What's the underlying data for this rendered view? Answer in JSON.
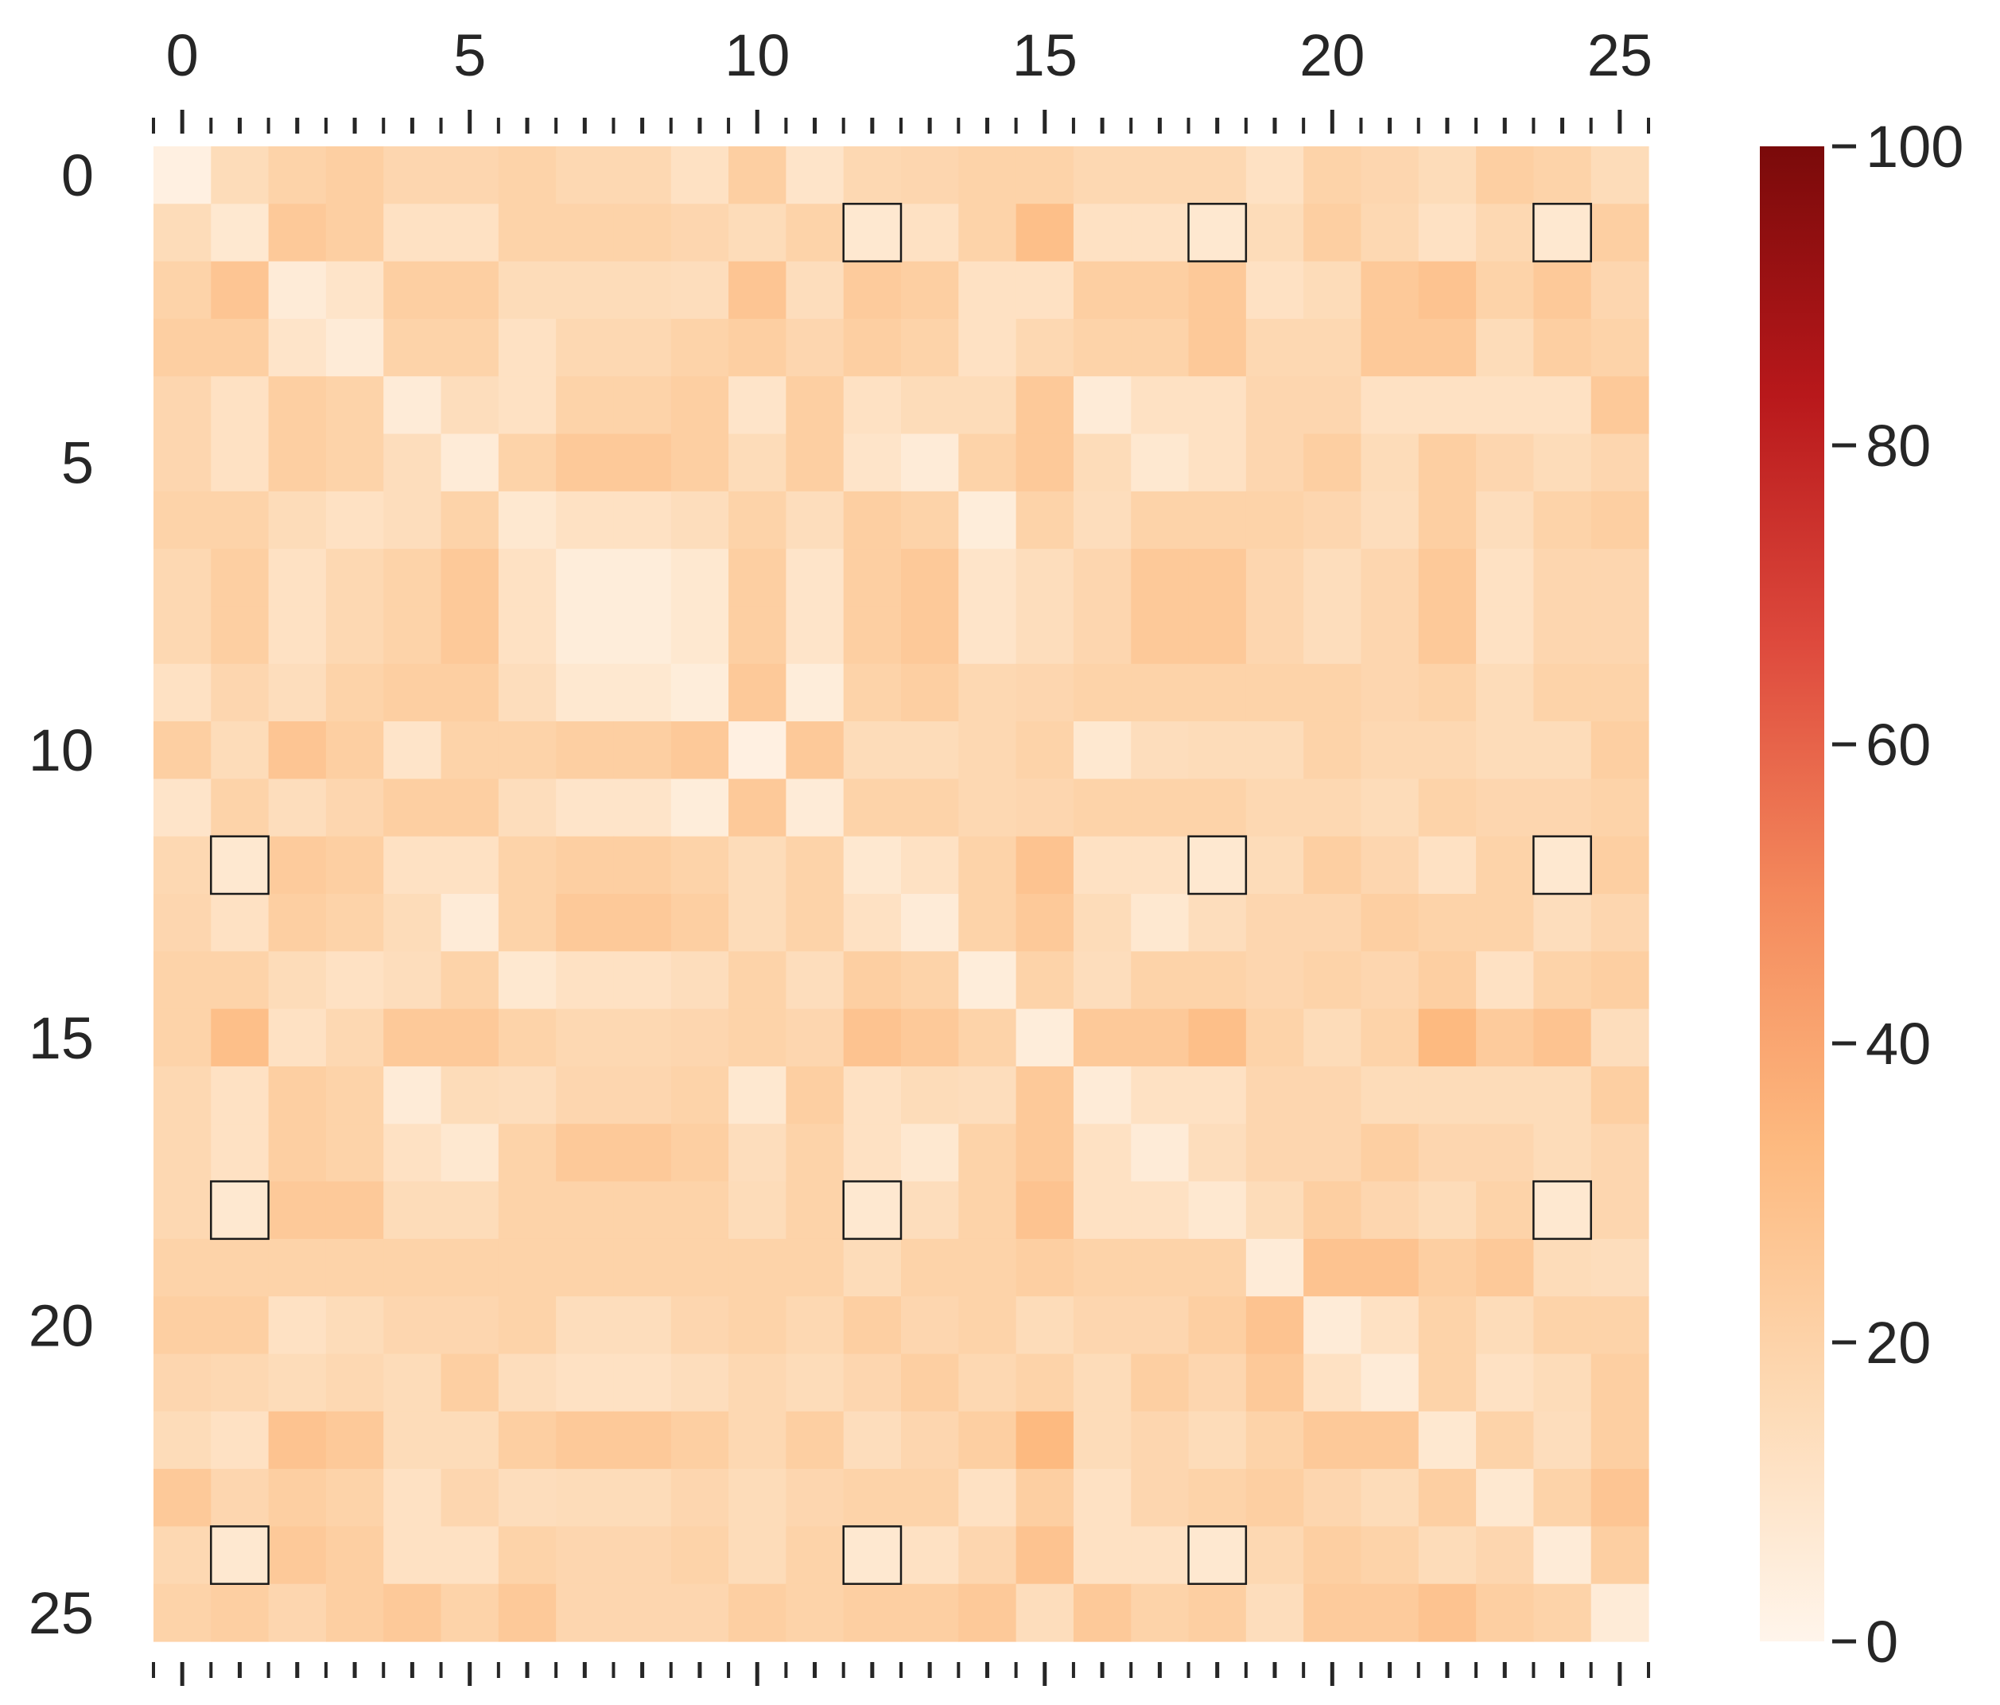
{
  "chart_data": {
    "type": "heatmap",
    "title": "",
    "xlabel": "",
    "ylabel": "",
    "n_rows": 26,
    "n_cols": 26,
    "x_ticks": [
      0,
      5,
      10,
      15,
      20,
      25
    ],
    "y_ticks": [
      0,
      5,
      10,
      15,
      20,
      25
    ],
    "x_tick_labels": [
      "0",
      "5",
      "10",
      "15",
      "20",
      "25"
    ],
    "y_tick_labels": [
      "0",
      "5",
      "10",
      "15",
      "20",
      "25"
    ],
    "colorbar": {
      "range": [
        0,
        100
      ],
      "ticks": [
        0,
        20,
        40,
        60,
        80,
        100
      ],
      "tick_labels": [
        "0",
        "20",
        "40",
        "60",
        "80",
        "100"
      ],
      "colormap": "Oranges",
      "colors": [
        "#fff5eb",
        "#fdd9b3",
        "#fdb97f",
        "#f4895c",
        "#de4a3d",
        "#b8181b",
        "#7a0a0a"
      ]
    },
    "highlighted_cells": [
      [
        1,
        12
      ],
      [
        1,
        18
      ],
      [
        1,
        24
      ],
      [
        12,
        1
      ],
      [
        12,
        18
      ],
      [
        12,
        24
      ],
      [
        18,
        1
      ],
      [
        18,
        12
      ],
      [
        18,
        24
      ],
      [
        24,
        1
      ],
      [
        24,
        12
      ],
      [
        24,
        18
      ]
    ],
    "values": [
      [
        3,
        15,
        20,
        22,
        18,
        18,
        20,
        17,
        17,
        12,
        22,
        10,
        17,
        18,
        20,
        20,
        17,
        17,
        17,
        12,
        20,
        18,
        15,
        22,
        20,
        15
      ],
      [
        15,
        8,
        25,
        22,
        12,
        12,
        20,
        20,
        20,
        18,
        15,
        20,
        8,
        12,
        20,
        30,
        12,
        12,
        8,
        15,
        22,
        17,
        12,
        17,
        8,
        22
      ],
      [
        20,
        27,
        6,
        10,
        22,
        22,
        15,
        15,
        15,
        14,
        27,
        14,
        24,
        22,
        12,
        12,
        22,
        22,
        25,
        12,
        15,
        25,
        28,
        20,
        25,
        18
      ],
      [
        22,
        22,
        10,
        6,
        20,
        20,
        12,
        17,
        17,
        20,
        22,
        18,
        22,
        20,
        12,
        17,
        20,
        20,
        25,
        17,
        17,
        25,
        25,
        15,
        22,
        20
      ],
      [
        18,
        12,
        22,
        20,
        6,
        14,
        12,
        20,
        20,
        22,
        10,
        22,
        12,
        15,
        15,
        25,
        6,
        12,
        12,
        18,
        18,
        12,
        12,
        12,
        12,
        25
      ],
      [
        18,
        12,
        22,
        20,
        14,
        6,
        20,
        25,
        25,
        22,
        15,
        22,
        10,
        6,
        20,
        25,
        15,
        8,
        12,
        18,
        22,
        15,
        22,
        18,
        15,
        18
      ],
      [
        20,
        20,
        15,
        12,
        14,
        20,
        8,
        12,
        12,
        14,
        20,
        14,
        22,
        20,
        5,
        20,
        14,
        20,
        20,
        20,
        18,
        14,
        22,
        14,
        20,
        22
      ],
      [
        17,
        22,
        12,
        17,
        20,
        25,
        12,
        5,
        5,
        8,
        22,
        10,
        22,
        25,
        10,
        14,
        18,
        25,
        25,
        18,
        14,
        18,
        25,
        12,
        18,
        18
      ],
      [
        17,
        22,
        12,
        17,
        20,
        25,
        12,
        5,
        5,
        8,
        22,
        10,
        22,
        25,
        10,
        14,
        18,
        25,
        25,
        18,
        14,
        18,
        25,
        12,
        18,
        18
      ],
      [
        12,
        18,
        14,
        20,
        22,
        22,
        14,
        8,
        8,
        5,
        25,
        5,
        20,
        22,
        17,
        18,
        20,
        20,
        20,
        20,
        20,
        18,
        20,
        15,
        20,
        20
      ],
      [
        22,
        15,
        27,
        22,
        10,
        20,
        20,
        22,
        22,
        25,
        3,
        25,
        15,
        15,
        17,
        20,
        8,
        14,
        15,
        15,
        20,
        17,
        17,
        15,
        15,
        22
      ],
      [
        10,
        20,
        14,
        18,
        22,
        22,
        14,
        10,
        10,
        5,
        25,
        6,
        20,
        20,
        17,
        18,
        20,
        20,
        20,
        17,
        17,
        15,
        20,
        18,
        18,
        20
      ],
      [
        17,
        8,
        24,
        22,
        12,
        12,
        20,
        22,
        22,
        20,
        15,
        20,
        8,
        12,
        20,
        28,
        12,
        12,
        8,
        15,
        22,
        18,
        12,
        20,
        8,
        22
      ],
      [
        18,
        12,
        22,
        20,
        15,
        6,
        20,
        25,
        25,
        22,
        15,
        20,
        12,
        6,
        20,
        25,
        15,
        8,
        14,
        18,
        18,
        22,
        20,
        20,
        14,
        18
      ],
      [
        20,
        20,
        15,
        12,
        14,
        20,
        8,
        12,
        12,
        14,
        20,
        14,
        22,
        20,
        5,
        20,
        14,
        20,
        20,
        18,
        20,
        18,
        22,
        12,
        20,
        22
      ],
      [
        20,
        30,
        12,
        17,
        25,
        25,
        20,
        17,
        17,
        18,
        20,
        18,
        28,
        25,
        20,
        5,
        25,
        25,
        30,
        20,
        15,
        20,
        33,
        24,
        28,
        14
      ],
      [
        17,
        12,
        22,
        20,
        6,
        15,
        14,
        18,
        18,
        20,
        8,
        22,
        12,
        15,
        14,
        25,
        6,
        12,
        12,
        18,
        18,
        15,
        15,
        15,
        15,
        22
      ],
      [
        17,
        12,
        22,
        20,
        12,
        8,
        20,
        25,
        25,
        22,
        14,
        20,
        12,
        8,
        20,
        25,
        12,
        6,
        14,
        18,
        18,
        22,
        18,
        18,
        15,
        18
      ],
      [
        17,
        8,
        25,
        25,
        15,
        15,
        20,
        20,
        20,
        20,
        15,
        20,
        8,
        14,
        20,
        28,
        12,
        12,
        8,
        15,
        22,
        18,
        15,
        20,
        8,
        18
      ],
      [
        20,
        20,
        20,
        20,
        20,
        20,
        20,
        20,
        20,
        20,
        20,
        20,
        15,
        20,
        20,
        22,
        20,
        20,
        20,
        6,
        28,
        28,
        22,
        25,
        15,
        14
      ],
      [
        22,
        22,
        12,
        15,
        18,
        18,
        20,
        14,
        14,
        18,
        20,
        17,
        22,
        18,
        20,
        15,
        18,
        18,
        22,
        28,
        6,
        12,
        20,
        15,
        20,
        20
      ],
      [
        18,
        17,
        15,
        17,
        15,
        22,
        14,
        12,
        12,
        14,
        17,
        15,
        18,
        22,
        17,
        20,
        15,
        22,
        18,
        25,
        12,
        6,
        20,
        12,
        15,
        22
      ],
      [
        15,
        12,
        28,
        25,
        15,
        15,
        22,
        25,
        25,
        22,
        17,
        22,
        14,
        18,
        22,
        33,
        15,
        18,
        15,
        20,
        25,
        25,
        8,
        20,
        14,
        22
      ],
      [
        25,
        18,
        22,
        20,
        12,
        18,
        14,
        15,
        15,
        18,
        15,
        18,
        20,
        20,
        12,
        22,
        12,
        18,
        20,
        22,
        18,
        15,
        22,
        8,
        20,
        27
      ],
      [
        17,
        8,
        25,
        22,
        12,
        12,
        20,
        18,
        18,
        20,
        15,
        20,
        8,
        12,
        18,
        28,
        12,
        12,
        8,
        17,
        22,
        20,
        15,
        18,
        6,
        22
      ],
      [
        20,
        22,
        18,
        22,
        25,
        20,
        25,
        18,
        18,
        18,
        22,
        20,
        22,
        22,
        25,
        14,
        25,
        20,
        22,
        14,
        24,
        24,
        28,
        22,
        20,
        6
      ]
    ]
  }
}
